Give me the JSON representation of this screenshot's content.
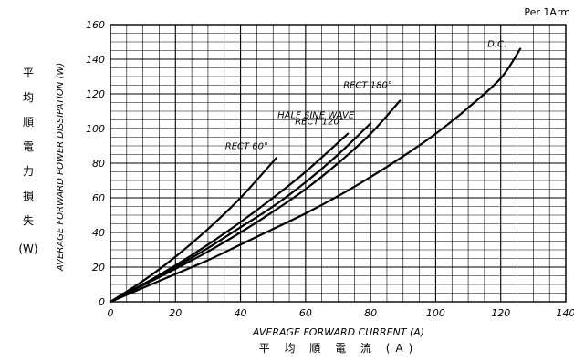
{
  "chart_data": {
    "type": "line",
    "note": "Per 1Arm",
    "xlabel": "AVERAGE FORWARD CURRENT (A)",
    "xlabel_jp": "平 均 順 電 流 (A)",
    "ylabel": "AVERAGE FORWARD POWER DISSIPATION (W)",
    "ylabel_jp": [
      "平",
      "均",
      "順",
      "電",
      "力",
      "損",
      "失"
    ],
    "ylabel_jp_unit": "(W)",
    "xlim": [
      0,
      140
    ],
    "ylim": [
      0,
      160
    ],
    "x_ticks": [
      0,
      20,
      40,
      60,
      80,
      100,
      120,
      140
    ],
    "y_ticks": [
      0,
      20,
      40,
      60,
      80,
      100,
      120,
      140,
      160
    ],
    "grid": true,
    "series": [
      {
        "name": "RECT 60°",
        "x": [
          0,
          10,
          20,
          30,
          40,
          51
        ],
        "y": [
          0,
          12,
          26,
          42,
          60,
          83
        ]
      },
      {
        "name": "RECT 120°",
        "x": [
          0,
          10,
          20,
          30,
          40,
          50,
          60,
          73
        ],
        "y": [
          0,
          10,
          21,
          33,
          46,
          60,
          75,
          97
        ]
      },
      {
        "name": "HALF SINE WAVE",
        "x": [
          0,
          10,
          20,
          30,
          40,
          50,
          60,
          70,
          80
        ],
        "y": [
          0,
          10,
          20,
          31,
          43,
          55,
          69,
          85,
          103
        ]
      },
      {
        "name": "RECT 180°",
        "x": [
          0,
          10,
          20,
          30,
          40,
          50,
          60,
          70,
          80,
          89
        ],
        "y": [
          0,
          9.5,
          19,
          29,
          40,
          52,
          65,
          80,
          97,
          116
        ]
      },
      {
        "name": "D.C.",
        "x": [
          0,
          10,
          20,
          30,
          40,
          50,
          60,
          70,
          80,
          90,
          100,
          110,
          120,
          126
        ],
        "y": [
          0,
          8,
          16,
          24,
          33,
          42,
          51,
          61,
          72,
          84,
          97,
          112,
          129,
          146
        ]
      }
    ]
  }
}
